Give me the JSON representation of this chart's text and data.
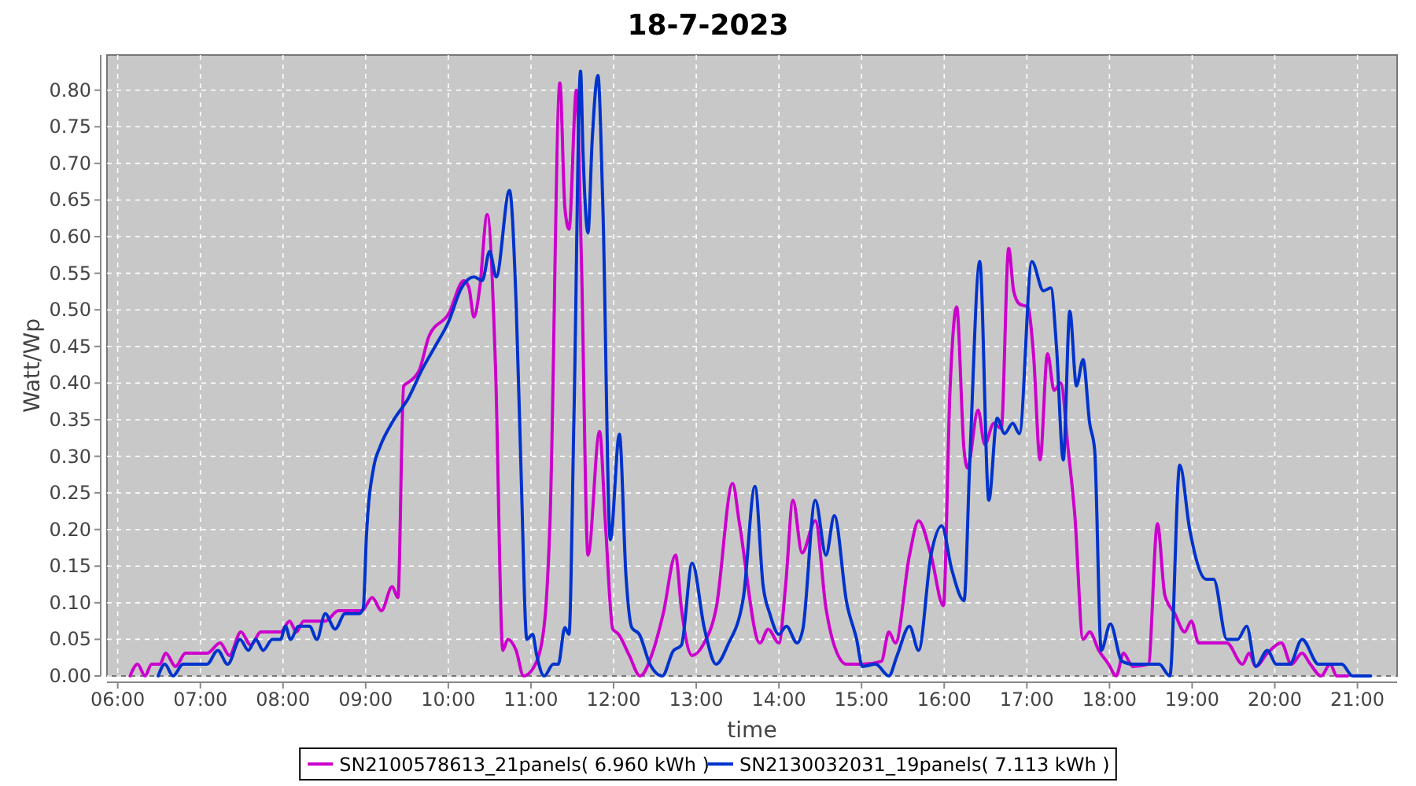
{
  "chart_data": {
    "type": "line",
    "title": "18-7-2023",
    "xlabel": "time",
    "ylabel": "Watt/Wp",
    "grid": true,
    "legend": "bottom",
    "line_style": "solid",
    "xlim": [
      5.87,
      21.48
    ],
    "xticks": [
      {
        "value": 6,
        "label": "06:00"
      },
      {
        "value": 7,
        "label": "07:00"
      },
      {
        "value": 8,
        "label": "08:00"
      },
      {
        "value": 9,
        "label": "09:00"
      },
      {
        "value": 10,
        "label": "10:00"
      },
      {
        "value": 11,
        "label": "11:00"
      },
      {
        "value": 12,
        "label": "12:00"
      },
      {
        "value": 13,
        "label": "13:00"
      },
      {
        "value": 14,
        "label": "14:00"
      },
      {
        "value": 15,
        "label": "15:00"
      },
      {
        "value": 16,
        "label": "16:00"
      },
      {
        "value": 17,
        "label": "17:00"
      },
      {
        "value": 18,
        "label": "18:00"
      },
      {
        "value": 19,
        "label": "19:00"
      },
      {
        "value": 20,
        "label": "20:00"
      },
      {
        "value": 21,
        "label": "21:00"
      }
    ],
    "ylim": [
      0,
      0.848
    ],
    "yticks": [
      {
        "value": 0,
        "label": "0.00"
      },
      {
        "value": 0.05,
        "label": "0.05"
      },
      {
        "value": 0.1,
        "label": "0.10"
      },
      {
        "value": 0.15,
        "label": "0.15"
      },
      {
        "value": 0.2,
        "label": "0.20"
      },
      {
        "value": 0.25,
        "label": "0.25"
      },
      {
        "value": 0.3,
        "label": "0.30"
      },
      {
        "value": 0.35,
        "label": "0.35"
      },
      {
        "value": 0.4,
        "label": "0.40"
      },
      {
        "value": 0.45,
        "label": "0.45"
      },
      {
        "value": 0.5,
        "label": "0.50"
      },
      {
        "value": 0.55,
        "label": "0.55"
      },
      {
        "value": 0.6,
        "label": "0.60"
      },
      {
        "value": 0.65,
        "label": "0.65"
      },
      {
        "value": 0.7,
        "label": "0.70"
      },
      {
        "value": 0.75,
        "label": "0.75"
      },
      {
        "value": 0.8,
        "label": "0.80"
      }
    ],
    "series": [
      {
        "name": "SN2100578613_21panels( 6.960 kWh )",
        "color": "#cc00cc",
        "x": [
          6.15,
          6.24,
          6.33,
          6.41,
          6.51,
          6.58,
          6.7,
          6.82,
          7.08,
          7.24,
          7.35,
          7.49,
          7.61,
          7.73,
          7.97,
          8.08,
          8.16,
          8.25,
          8.51,
          8.67,
          8.95,
          9.08,
          9.19,
          9.32,
          9.39,
          9.46,
          9.53,
          9.65,
          9.77,
          10.0,
          10.19,
          10.25,
          10.31,
          10.38,
          10.47,
          10.57,
          10.66,
          10.72,
          10.82,
          10.91,
          11.07,
          11.17,
          11.23,
          11.35,
          11.41,
          11.46,
          11.55,
          11.61,
          11.69,
          11.83,
          11.9,
          11.99,
          12.06,
          12.19,
          12.32,
          12.48,
          12.6,
          12.75,
          12.82,
          12.95,
          13.08,
          13.24,
          13.44,
          13.52,
          13.77,
          13.87,
          14.0,
          14.08,
          14.17,
          14.28,
          14.44,
          14.57,
          14.66,
          14.82,
          15.01,
          15.24,
          15.33,
          15.41,
          15.58,
          15.69,
          15.84,
          15.99,
          16.07,
          16.15,
          16.24,
          16.28,
          16.41,
          16.49,
          16.6,
          16.69,
          16.78,
          16.84,
          16.91,
          17.01,
          17.08,
          17.16,
          17.25,
          17.33,
          17.41,
          17.5,
          17.58,
          17.68,
          17.76,
          17.87,
          17.99,
          18.08,
          18.17,
          18.28,
          18.47,
          18.58,
          18.67,
          18.79,
          18.91,
          18.99,
          19.08,
          19.22,
          19.42,
          19.61,
          19.69,
          19.77,
          19.91,
          20.08,
          20.2,
          20.33,
          20.43,
          20.56,
          20.67,
          20.75,
          20.88
        ],
        "values": [
          0,
          0.016,
          0,
          0.016,
          0.016,
          0.031,
          0.013,
          0.031,
          0.031,
          0.045,
          0.028,
          0.06,
          0.042,
          0.06,
          0.06,
          0.075,
          0.06,
          0.075,
          0.075,
          0.089,
          0.089,
          0.107,
          0.089,
          0.122,
          0.107,
          0.396,
          0.402,
          0.418,
          0.465,
          0.494,
          0.54,
          0.53,
          0.49,
          0.53,
          0.63,
          0.425,
          0.035,
          0.05,
          0.035,
          0,
          0.02,
          0.08,
          0.21,
          0.81,
          0.64,
          0.61,
          0.8,
          0.57,
          0.165,
          0.334,
          0.21,
          0.064,
          0.057,
          0.028,
          0,
          0.035,
          0.085,
          0.165,
          0.092,
          0.028,
          0.042,
          0.092,
          0.263,
          0.21,
          0.045,
          0.064,
          0.045,
          0.122,
          0.24,
          0.168,
          0.212,
          0.092,
          0.045,
          0.016,
          0.016,
          0.02,
          0.06,
          0.045,
          0.165,
          0.212,
          0.165,
          0.096,
          0.39,
          0.504,
          0.309,
          0.284,
          0.363,
          0.316,
          0.345,
          0.338,
          0.584,
          0.526,
          0.508,
          0.504,
          0.44,
          0.295,
          0.44,
          0.39,
          0.4,
          0.309,
          0.22,
          0.05,
          0.06,
          0.035,
          0.016,
          0,
          0.031,
          0.013,
          0.016,
          0.208,
          0.11,
          0.085,
          0.06,
          0.075,
          0.045,
          0.045,
          0.045,
          0.016,
          0.031,
          0.013,
          0.031,
          0.045,
          0.016,
          0.031,
          0.016,
          0,
          0.016,
          0,
          0
        ]
      },
      {
        "name": "SN2130032031_19panels( 7.113 kWh )",
        "color": "#0033cc",
        "x": [
          6.49,
          6.57,
          6.67,
          6.79,
          7.08,
          7.21,
          7.33,
          7.48,
          7.58,
          7.67,
          7.76,
          7.87,
          7.97,
          8.03,
          8.09,
          8.19,
          8.32,
          8.41,
          8.51,
          8.63,
          8.75,
          8.92,
          8.97,
          9.01,
          9.1,
          9.17,
          9.33,
          9.52,
          9.68,
          9.84,
          10.0,
          10.16,
          10.31,
          10.41,
          10.5,
          10.58,
          10.74,
          10.82,
          10.88,
          10.95,
          11.02,
          11.07,
          11.16,
          11.27,
          11.33,
          11.41,
          11.46,
          11.52,
          11.6,
          11.63,
          11.69,
          11.74,
          11.81,
          11.87,
          11.96,
          12.07,
          12.15,
          12.22,
          12.31,
          12.44,
          12.59,
          12.72,
          12.82,
          12.95,
          13.1,
          13.24,
          13.38,
          13.57,
          13.71,
          13.81,
          13.89,
          14.0,
          14.09,
          14.22,
          14.29,
          14.44,
          14.57,
          14.67,
          14.82,
          14.94,
          15.01,
          15.17,
          15.33,
          15.43,
          15.58,
          15.69,
          15.84,
          15.97,
          16.09,
          16.24,
          16.31,
          16.43,
          16.54,
          16.64,
          16.73,
          16.83,
          16.91,
          17.06,
          17.2,
          17.29,
          17.36,
          17.44,
          17.52,
          17.6,
          17.68,
          17.76,
          17.82,
          17.9,
          18.01,
          18.15,
          18.28,
          18.6,
          18.73,
          18.85,
          18.97,
          19.17,
          19.26,
          19.42,
          19.55,
          19.66,
          19.77,
          19.91,
          20.02,
          20.18,
          20.33,
          20.53,
          20.81,
          20.94,
          21.16
        ],
        "values": [
          0,
          0.016,
          0,
          0.016,
          0.016,
          0.035,
          0.016,
          0.05,
          0.035,
          0.05,
          0.035,
          0.05,
          0.05,
          0.068,
          0.05,
          0.068,
          0.068,
          0.05,
          0.085,
          0.064,
          0.085,
          0.085,
          0.092,
          0.193,
          0.287,
          0.312,
          0.348,
          0.38,
          0.418,
          0.45,
          0.483,
          0.53,
          0.545,
          0.54,
          0.58,
          0.545,
          0.663,
          0.51,
          0.28,
          0.05,
          0.057,
          0.028,
          0,
          0.016,
          0.016,
          0.066,
          0.057,
          0.353,
          0.826,
          0.714,
          0.605,
          0.73,
          0.82,
          0.64,
          0.186,
          0.33,
          0.136,
          0.066,
          0.057,
          0.016,
          0,
          0.034,
          0.042,
          0.154,
          0.064,
          0.016,
          0.042,
          0.107,
          0.259,
          0.122,
          0.085,
          0.057,
          0.068,
          0.045,
          0.064,
          0.24,
          0.165,
          0.219,
          0.1,
          0.05,
          0.013,
          0.016,
          0,
          0.028,
          0.068,
          0.035,
          0.165,
          0.205,
          0.146,
          0.103,
          0.295,
          0.566,
          0.24,
          0.352,
          0.331,
          0.345,
          0.331,
          0.566,
          0.526,
          0.53,
          0.447,
          0.295,
          0.498,
          0.396,
          0.432,
          0.345,
          0.309,
          0.035,
          0.071,
          0.02,
          0.016,
          0.016,
          0,
          0.288,
          0.2,
          0.132,
          0.132,
          0.05,
          0.05,
          0.068,
          0.013,
          0.035,
          0.016,
          0.016,
          0.05,
          0.016,
          0.016,
          0,
          0
        ]
      }
    ]
  }
}
